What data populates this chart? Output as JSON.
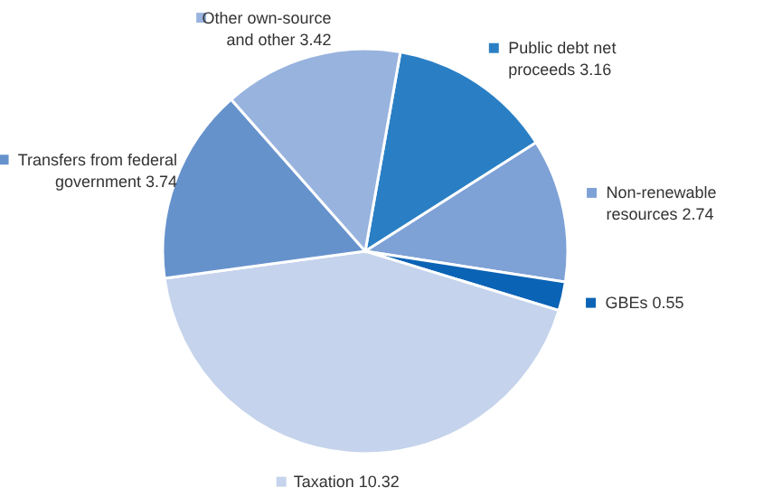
{
  "chart_data": {
    "type": "pie",
    "legend": "right",
    "categories": [
      "Public debt net proceeds 3.16",
      "Non-renewable resources 2.74",
      "GBEs 0.55",
      "Taxation 10.32",
      "Transfers from federal government 3.74",
      "Other own-source and other 3.42"
    ],
    "values": [
      3.16,
      2.74,
      0.55,
      10.32,
      3.74,
      3.42
    ],
    "colors": [
      "#2a7fc4",
      "#7ea1d6",
      "#0b63b5",
      "#c5d3ec",
      "#6692cc",
      "#98b3de"
    ]
  }
}
